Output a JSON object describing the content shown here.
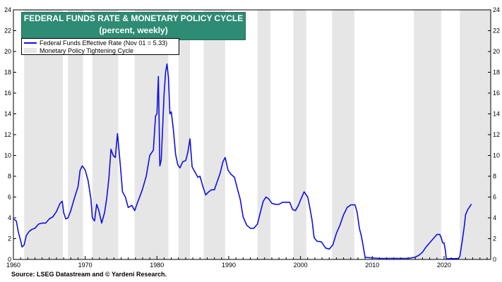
{
  "title_line1": "FEDERAL FUNDS RATE & MONETARY POLICY CYCLE",
  "title_line2": "(percent, weekly)",
  "source": "Source: LSEG Datastream and © Yardeni Research.",
  "colors": {
    "title_bg": "#2e8b74",
    "line": "#1010e0",
    "shade": "#e6e6e6"
  },
  "chart_data": {
    "type": "line",
    "title": "FEDERAL FUNDS RATE & MONETARY POLICY CYCLE",
    "subtitle": "(percent, weekly)",
    "xlim": [
      1960,
      2026.5
    ],
    "ylim": [
      0,
      24
    ],
    "yticks": [
      0,
      2,
      4,
      6,
      8,
      10,
      12,
      14,
      16,
      18,
      20,
      22,
      24
    ],
    "xticks": [
      1960,
      1970,
      1980,
      1990,
      2000,
      2010,
      2020
    ],
    "grid": false,
    "legend_position": "top-left",
    "legend": [
      "Federal Funds Effective Rate (Nov 01 = 5.33)",
      "Monetary Policy Tightening Cycle"
    ],
    "tightening_cycles": [
      [
        1961.5,
        1966.9
      ],
      [
        1967.6,
        1969.7
      ],
      [
        1971.0,
        1974.6
      ],
      [
        1976.9,
        1981.6
      ],
      [
        1983.0,
        1984.6
      ],
      [
        1986.5,
        1989.5
      ],
      [
        1994.0,
        1995.8
      ],
      [
        1999.0,
        2000.8
      ],
      [
        2004.4,
        2007.5
      ],
      [
        2015.8,
        2019.6
      ],
      [
        2022.2,
        2026.5
      ]
    ],
    "series": [
      {
        "name": "Federal Funds Effective Rate (Nov 01 = 5.33)",
        "x": [
          1960.0,
          1960.4,
          1960.7,
          1961.0,
          1961.2,
          1961.5,
          1961.8,
          1962.2,
          1962.6,
          1963.0,
          1963.5,
          1964.0,
          1964.5,
          1965.0,
          1965.5,
          1966.0,
          1966.5,
          1966.8,
          1967.0,
          1967.3,
          1967.6,
          1968.0,
          1968.5,
          1969.0,
          1969.3,
          1969.6,
          1970.0,
          1970.4,
          1970.8,
          1971.0,
          1971.3,
          1971.6,
          1971.9,
          1972.3,
          1972.7,
          1973.0,
          1973.3,
          1973.6,
          1973.9,
          1974.2,
          1974.5,
          1974.9,
          1975.2,
          1975.6,
          1976.0,
          1976.5,
          1976.9,
          1977.3,
          1977.7,
          1978.0,
          1978.5,
          1979.0,
          1979.5,
          1979.8,
          1980.0,
          1980.2,
          1980.4,
          1980.6,
          1980.9,
          1981.0,
          1981.2,
          1981.4,
          1981.6,
          1981.8,
          1982.0,
          1982.3,
          1982.6,
          1982.9,
          1983.2,
          1983.6,
          1984.0,
          1984.3,
          1984.6,
          1984.9,
          1985.3,
          1985.7,
          1986.0,
          1986.4,
          1986.8,
          1987.2,
          1987.6,
          1988.0,
          1988.4,
          1988.8,
          1989.2,
          1989.5,
          1989.9,
          1990.3,
          1990.8,
          1991.2,
          1991.6,
          1992.0,
          1992.5,
          1993.0,
          1993.5,
          1994.0,
          1994.4,
          1994.8,
          1995.2,
          1995.6,
          1996.0,
          1996.5,
          1997.0,
          1997.5,
          1998.0,
          1998.5,
          1998.9,
          1999.3,
          1999.7,
          2000.0,
          2000.5,
          2001.0,
          2001.3,
          2001.6,
          2001.9,
          2002.3,
          2002.9,
          2003.5,
          2004.0,
          2004.5,
          2005.0,
          2005.5,
          2006.0,
          2006.5,
          2007.0,
          2007.6,
          2007.9,
          2008.2,
          2008.5,
          2008.8,
          2009.0,
          2010.0,
          2011.0,
          2012.0,
          2013.0,
          2014.0,
          2015.0,
          2015.9,
          2016.5,
          2017.0,
          2017.5,
          2018.0,
          2018.5,
          2019.0,
          2019.4,
          2019.6,
          2019.8,
          2020.0,
          2020.2,
          2020.3,
          2021.0,
          2022.0,
          2022.2,
          2022.5,
          2022.8,
          2023.0,
          2023.3,
          2023.6,
          2023.8
        ],
        "values": [
          3.9,
          3.7,
          2.6,
          1.8,
          1.2,
          1.4,
          2.3,
          2.7,
          2.9,
          3.0,
          3.4,
          3.5,
          3.5,
          3.9,
          4.1,
          4.6,
          5.4,
          5.6,
          4.5,
          3.9,
          4.0,
          4.7,
          5.9,
          7.0,
          8.6,
          9.0,
          8.6,
          7.6,
          5.8,
          4.0,
          3.7,
          5.3,
          4.7,
          3.5,
          4.5,
          5.9,
          7.8,
          10.6,
          10.0,
          9.8,
          12.1,
          9.0,
          6.5,
          6.0,
          5.0,
          5.2,
          4.7,
          5.5,
          6.2,
          6.8,
          8.0,
          10.0,
          10.5,
          13.8,
          14.0,
          17.6,
          9.0,
          9.6,
          14.5,
          16.0,
          18.0,
          18.8,
          17.5,
          14.0,
          14.2,
          12.4,
          10.1,
          9.1,
          8.8,
          9.4,
          9.5,
          10.3,
          11.6,
          8.9,
          8.4,
          7.9,
          8.0,
          7.0,
          6.2,
          6.5,
          6.7,
          6.7,
          7.5,
          8.3,
          9.4,
          9.8,
          8.6,
          8.2,
          7.9,
          6.8,
          5.8,
          4.1,
          3.3,
          3.0,
          3.0,
          3.4,
          4.5,
          5.6,
          6.0,
          5.8,
          5.4,
          5.3,
          5.3,
          5.5,
          5.5,
          5.5,
          4.8,
          4.7,
          5.2,
          5.7,
          6.5,
          6.0,
          5.0,
          3.8,
          2.1,
          1.75,
          1.7,
          1.1,
          1.0,
          1.4,
          2.5,
          3.3,
          4.3,
          5.0,
          5.25,
          5.25,
          4.5,
          3.0,
          2.2,
          1.0,
          0.2,
          0.15,
          0.1,
          0.1,
          0.1,
          0.1,
          0.1,
          0.2,
          0.4,
          0.7,
          1.2,
          1.6,
          2.0,
          2.4,
          2.4,
          2.1,
          1.6,
          1.6,
          0.8,
          0.07,
          0.08,
          0.08,
          0.3,
          1.6,
          3.1,
          4.3,
          4.8,
          5.1,
          5.33
        ]
      }
    ]
  }
}
